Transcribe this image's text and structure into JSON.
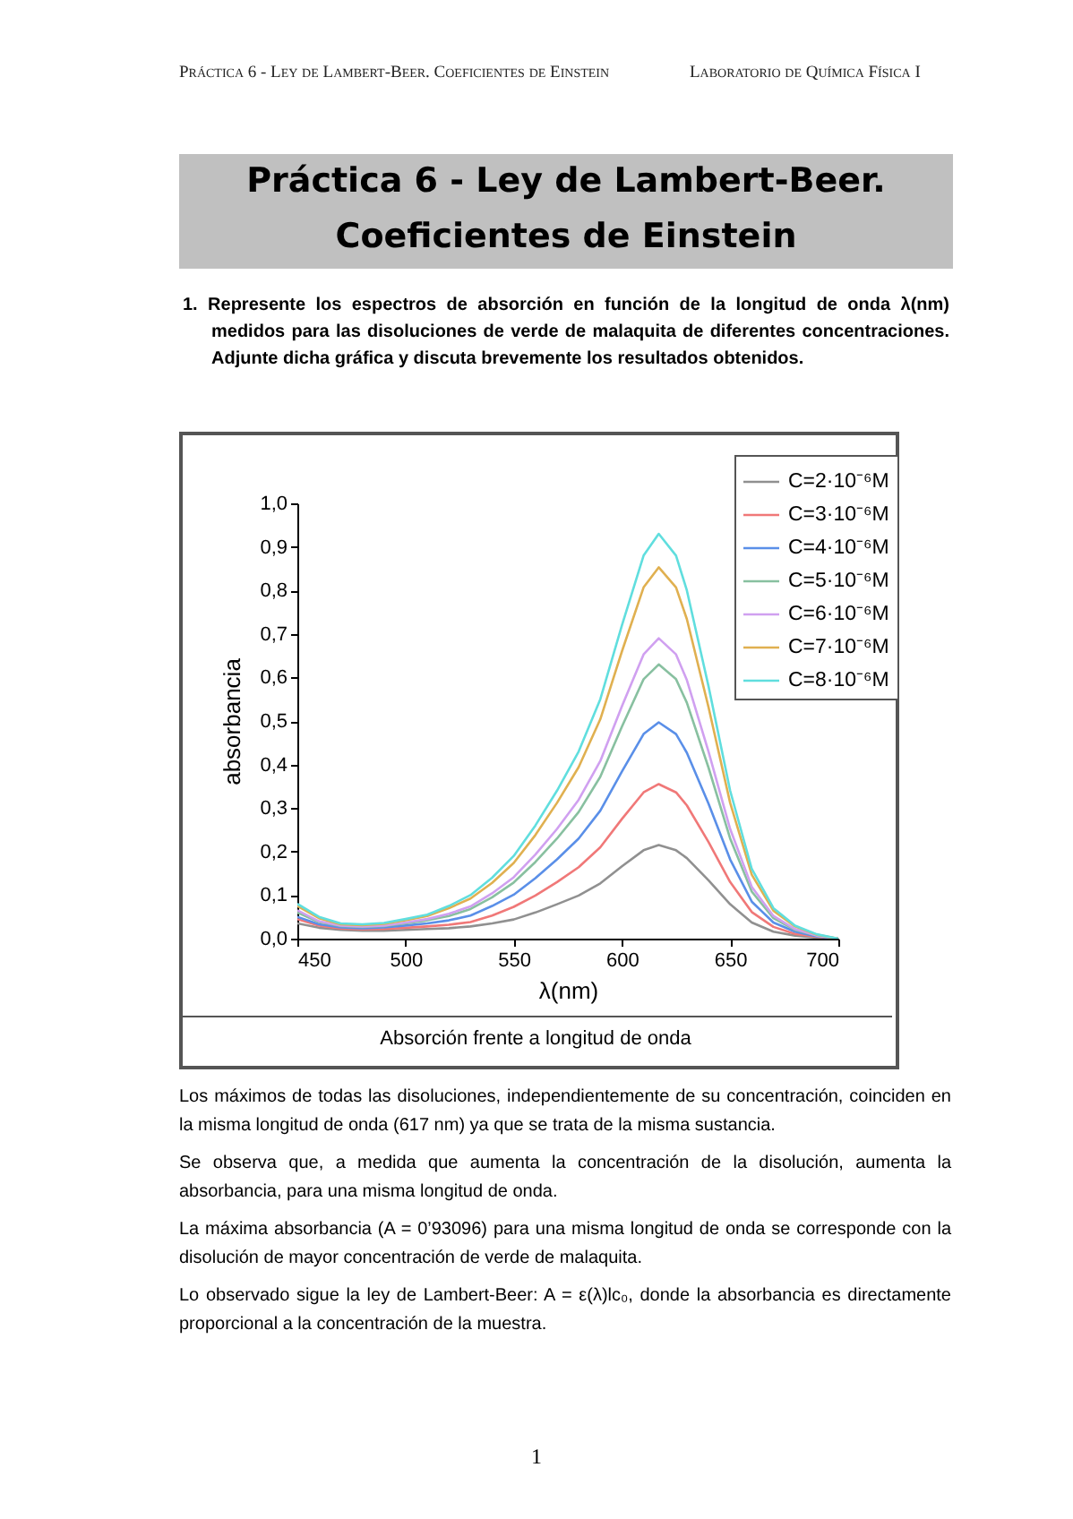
{
  "chart_data": {
    "type": "line",
    "title": "Práctica 6 - Ley de Lambert-Beer. Coeficientes de Einstein",
    "subtitle": "1. Represente los espectros de absorción en función de la longitud de onda λ(nm) medidos para las disoluciones de verde de malaquita de diferentes concentraciones. Adjunte dicha gráfica y discuta brevemente los resultados obtenidos.",
    "annotations": [
      "Práctica 6 - Ley de Lambert-Beer. Coeficientes de Einstein",
      "Laboratorio de Química Física I",
      "Absorción frente a longitud de onda",
      "Los máximos de todas las disoluciones, independientemente de su concentración, coinciden en la misma longitud de onda (617 nm) ya que se trata de la misma sustancia.",
      "Se observa que, a medida que aumenta la concentración de la disolución, aumenta la absorbancia, para una misma longitud de onda.",
      "La máxima absorbancia (A = 0’93096) para una misma longitud de onda se corresponde con la disolución de mayor concentración de verde de malaquita.",
      "Lo observado sigue la ley de Lambert-Beer: A = ε(λ)lc₀, donde la absorbancia es directamente proporcional a la concentración de la muestra.",
      "1"
    ],
    "xlabel": "λ(nm)",
    "ylabel": "absorbancia",
    "x": [
      450,
      460,
      470,
      480,
      490,
      500,
      510,
      520,
      530,
      540,
      550,
      560,
      570,
      580,
      590,
      600,
      610,
      617,
      625,
      630,
      640,
      650,
      660,
      670,
      680,
      690,
      700
    ],
    "series": [
      {
        "name": "C=2·10⁻⁶M",
        "color": "#909090",
        "values": [
          0.035,
          0.025,
          0.02,
          0.018,
          0.018,
          0.02,
          0.022,
          0.024,
          0.028,
          0.035,
          0.044,
          0.06,
          0.079,
          0.099,
          0.127,
          0.166,
          0.203,
          0.215,
          0.203,
          0.185,
          0.134,
          0.079,
          0.037,
          0.016,
          0.007,
          0.002,
          0
        ]
      },
      {
        "name": "C=3·10⁻⁶M",
        "color": "#f07878",
        "values": [
          0.045,
          0.03,
          0.023,
          0.021,
          0.022,
          0.025,
          0.028,
          0.032,
          0.038,
          0.053,
          0.073,
          0.099,
          0.13,
          0.164,
          0.21,
          0.275,
          0.336,
          0.355,
          0.336,
          0.306,
          0.222,
          0.13,
          0.061,
          0.027,
          0.011,
          0.004,
          0
        ]
      },
      {
        "name": "C=4·10⁻⁶M",
        "color": "#5a8fe8",
        "values": [
          0.05,
          0.033,
          0.026,
          0.024,
          0.026,
          0.03,
          0.035,
          0.042,
          0.053,
          0.075,
          0.101,
          0.139,
          0.182,
          0.23,
          0.294,
          0.384,
          0.47,
          0.497,
          0.47,
          0.427,
          0.31,
          0.182,
          0.085,
          0.037,
          0.016,
          0.005,
          0
        ]
      },
      {
        "name": "C=5·10⁻⁶M",
        "color": "#88c0a0",
        "values": [
          0.06,
          0.038,
          0.029,
          0.027,
          0.029,
          0.035,
          0.042,
          0.052,
          0.068,
          0.095,
          0.129,
          0.176,
          0.23,
          0.291,
          0.372,
          0.487,
          0.596,
          0.63,
          0.596,
          0.542,
          0.393,
          0.23,
          0.108,
          0.047,
          0.02,
          0.007,
          0
        ]
      },
      {
        "name": "C=6·10⁻⁶M",
        "color": "#d0a0f0",
        "values": [
          0.065,
          0.04,
          0.03,
          0.028,
          0.03,
          0.037,
          0.045,
          0.057,
          0.074,
          0.104,
          0.141,
          0.193,
          0.252,
          0.319,
          0.408,
          0.534,
          0.653,
          0.69,
          0.653,
          0.594,
          0.43,
          0.252,
          0.119,
          0.052,
          0.022,
          0.007,
          0
        ]
      },
      {
        "name": "C=7·10⁻⁶M",
        "color": "#e0b050",
        "values": [
          0.075,
          0.047,
          0.033,
          0.031,
          0.034,
          0.042,
          0.052,
          0.07,
          0.092,
          0.128,
          0.174,
          0.238,
          0.312,
          0.394,
          0.504,
          0.66,
          0.807,
          0.853,
          0.807,
          0.734,
          0.532,
          0.312,
          0.147,
          0.064,
          0.028,
          0.009,
          0
        ]
      },
      {
        "name": "C=8·10⁻⁶M",
        "color": "#60dede",
        "values": [
          0.08,
          0.05,
          0.035,
          0.033,
          0.036,
          0.045,
          0.055,
          0.075,
          0.1,
          0.14,
          0.19,
          0.26,
          0.34,
          0.43,
          0.55,
          0.72,
          0.88,
          0.93,
          0.88,
          0.8,
          0.58,
          0.34,
          0.16,
          0.07,
          0.03,
          0.01,
          0
        ]
      }
    ],
    "xlim": [
      450,
      700
    ],
    "xticks": [
      450,
      500,
      550,
      600,
      650,
      700
    ],
    "ylim": [
      0,
      1
    ],
    "yticks": [
      {
        "value": 0,
        "label": "0,0"
      },
      {
        "value": 0.1,
        "label": "0,1"
      },
      {
        "value": 0.2,
        "label": "0,2"
      },
      {
        "value": 0.3,
        "label": "0,3"
      },
      {
        "value": 0.4,
        "label": "0,4"
      },
      {
        "value": 0.5,
        "label": "0,5"
      },
      {
        "value": 0.6,
        "label": "0,6"
      },
      {
        "value": 0.7,
        "label": "0,7"
      },
      {
        "value": 0.8,
        "label": "0,8"
      },
      {
        "value": 0.9,
        "label": "0,9"
      },
      {
        "value": 1,
        "label": "1,0"
      }
    ],
    "grid": false,
    "legend": "top right",
    "marker": "none",
    "line_style": "solid"
  }
}
